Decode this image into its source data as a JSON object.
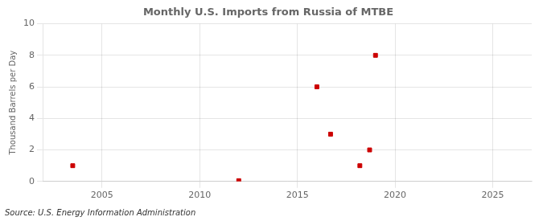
{
  "chart_data": {
    "type": "scatter",
    "title": "Monthly U.S. Imports from Russia of MTBE",
    "ylabel": "Thousand Barrels per Day",
    "source": "Source: U.S. Energy Information Administration",
    "x": [
      2003.5,
      2012.0,
      2016.0,
      2016.7,
      2018.2,
      2018.7,
      2019.0
    ],
    "values": [
      1,
      0.05,
      6,
      3,
      1,
      2,
      8
    ],
    "color": "#cc0000",
    "marker": "square",
    "xlim": [
      2002,
      2027
    ],
    "xticks": [
      2005,
      2010,
      2015,
      2020,
      2025
    ],
    "ylim": [
      0,
      10
    ],
    "yticks": [
      0,
      2,
      4,
      6,
      8,
      10
    ],
    "grid": true
  }
}
